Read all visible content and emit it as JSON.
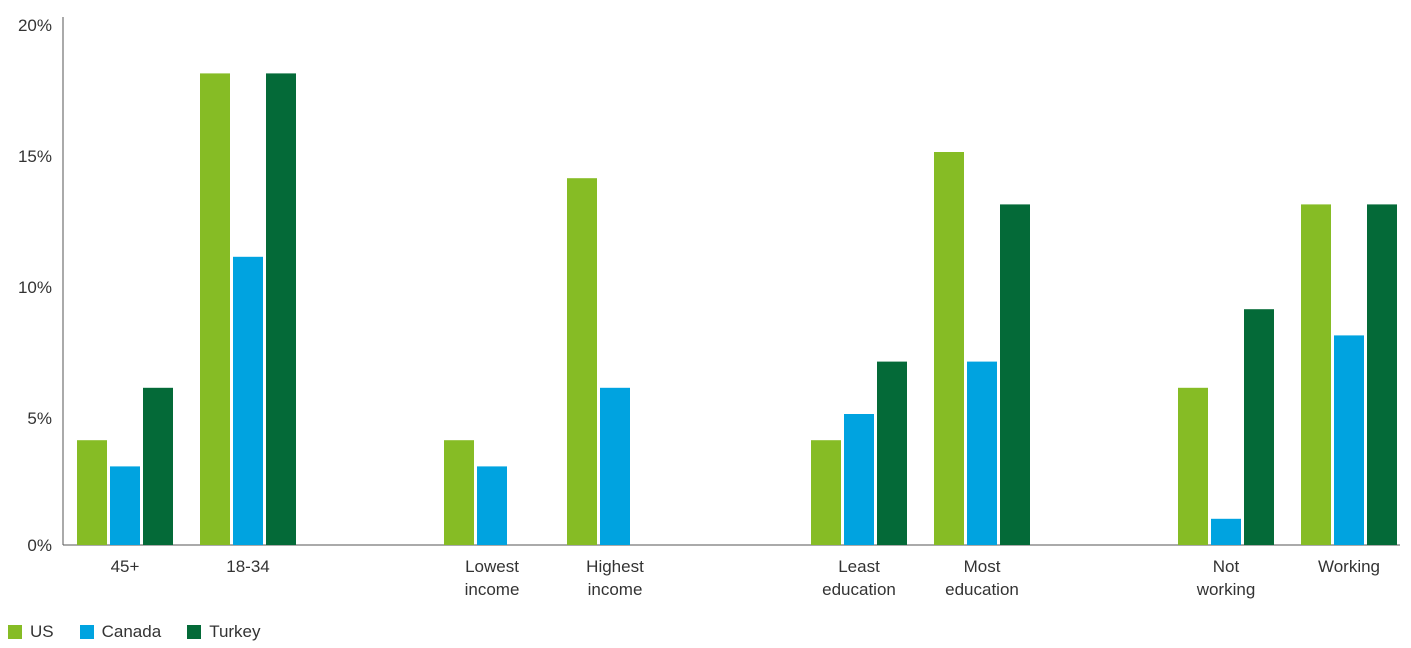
{
  "chart_data": {
    "type": "bar",
    "title": "",
    "xlabel": "",
    "ylabel": "",
    "ylim": [
      0,
      20
    ],
    "yticks": [
      "0%",
      "5%",
      "10%",
      "15%",
      "20%"
    ],
    "categories": [
      "45+",
      "18-34",
      "Lowest income",
      "Highest income",
      "Least education",
      "Most education",
      "Not working",
      "Working"
    ],
    "category_labels": [
      [
        "45+"
      ],
      [
        "18-34"
      ],
      [
        "Lowest",
        "income"
      ],
      [
        "Highest",
        "income"
      ],
      [
        "Least",
        "education"
      ],
      [
        "Most",
        "education"
      ],
      [
        "Not",
        "working"
      ],
      [
        "Working"
      ]
    ],
    "groups": [
      [
        "45+",
        "18-34"
      ],
      [
        "Lowest income",
        "Highest income"
      ],
      [
        "Least education",
        "Most education"
      ],
      [
        "Not working",
        "Working"
      ]
    ],
    "series": [
      {
        "name": "US",
        "color": "#86bc25",
        "values": [
          4,
          18,
          4,
          14,
          4,
          15,
          6,
          13
        ]
      },
      {
        "name": "Canada",
        "color": "#00a3e0",
        "values": [
          3,
          11,
          3,
          6,
          5,
          7,
          1,
          8
        ]
      },
      {
        "name": "Turkey",
        "color": "#046a38",
        "values": [
          6,
          18,
          null,
          null,
          7,
          13,
          9,
          13
        ]
      }
    ],
    "grid": false,
    "legend": "bottom-left"
  }
}
